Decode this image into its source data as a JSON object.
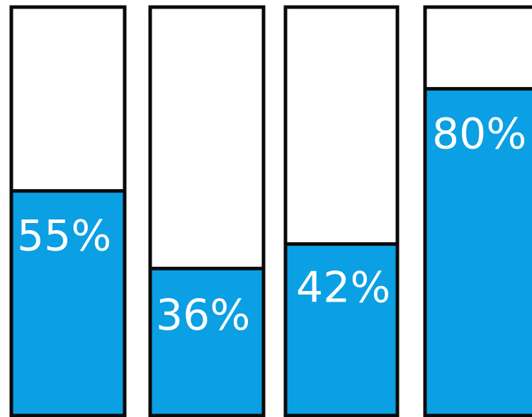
{
  "chart_data": {
    "type": "bar",
    "categories": [
      "",
      "",
      "",
      ""
    ],
    "values": [
      55,
      36,
      42,
      80
    ],
    "labels": [
      "55%",
      "36%",
      "42%",
      "80%"
    ],
    "ylim": [
      0,
      100
    ],
    "grid": false,
    "legend": "none",
    "colors": {
      "fill": "#0b9fe3",
      "empty": "#ffffff",
      "border": "#0a0a0a",
      "label": "#ffffff"
    }
  }
}
